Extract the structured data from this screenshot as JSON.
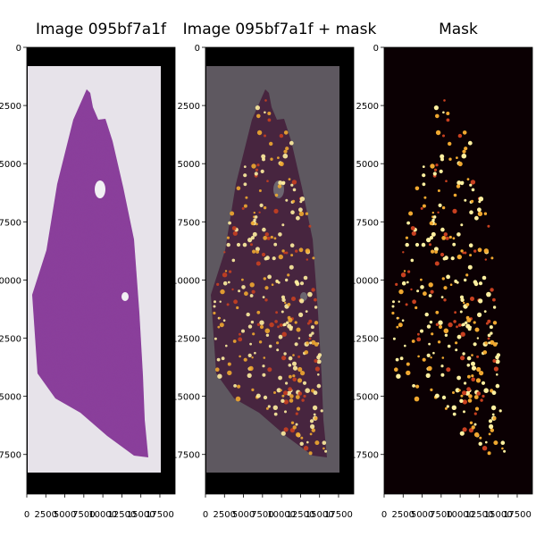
{
  "colors": {
    "figure_bg": "#ffffff",
    "scan_border": "#000000",
    "slide_bg": "#e7e3ea",
    "tissue": "#8a3f9c",
    "tissue_dark": "#6b2a7c",
    "overlay_slide": "#5e5860",
    "overlay_tissue": "#47253f",
    "mask_bg": "#0b0003",
    "mask_spot_hot": "#fff0a0",
    "mask_spot_mid": "#f0a830",
    "mask_spot_low": "#c84020"
  },
  "chart_data": [
    {
      "type": "image",
      "title": "Image 095bf7a1f",
      "content": "H&E stained tissue section on slide",
      "xlim": [
        0,
        19500
      ],
      "ylim": [
        19200,
        0
      ],
      "xticks": [
        0,
        2500,
        5000,
        7500,
        10000,
        12500,
        15000,
        17500
      ],
      "yticks": [
        0,
        2500,
        5000,
        7500,
        10000,
        12500,
        15000,
        17500
      ]
    },
    {
      "type": "image",
      "title": "Image 095bf7a1f + mask",
      "content": "tissue section with mask overlay",
      "xlim": [
        0,
        19500
      ],
      "ylim": [
        19200,
        0
      ],
      "xticks": [
        0,
        2500,
        5000,
        7500,
        10000,
        12500,
        15000,
        17500
      ],
      "yticks": [
        0,
        2500,
        5000,
        7500,
        10000,
        12500,
        15000,
        17500
      ]
    },
    {
      "type": "heatmap",
      "title": "Mask",
      "colormap": "hot",
      "xlim": [
        0,
        19500
      ],
      "ylim": [
        19200,
        0
      ],
      "xticks": [
        0,
        2500,
        5000,
        7500,
        10000,
        12500,
        15000,
        17500
      ],
      "yticks": [
        0,
        2500,
        5000,
        7500,
        10000,
        12500,
        15000,
        17500
      ]
    }
  ]
}
